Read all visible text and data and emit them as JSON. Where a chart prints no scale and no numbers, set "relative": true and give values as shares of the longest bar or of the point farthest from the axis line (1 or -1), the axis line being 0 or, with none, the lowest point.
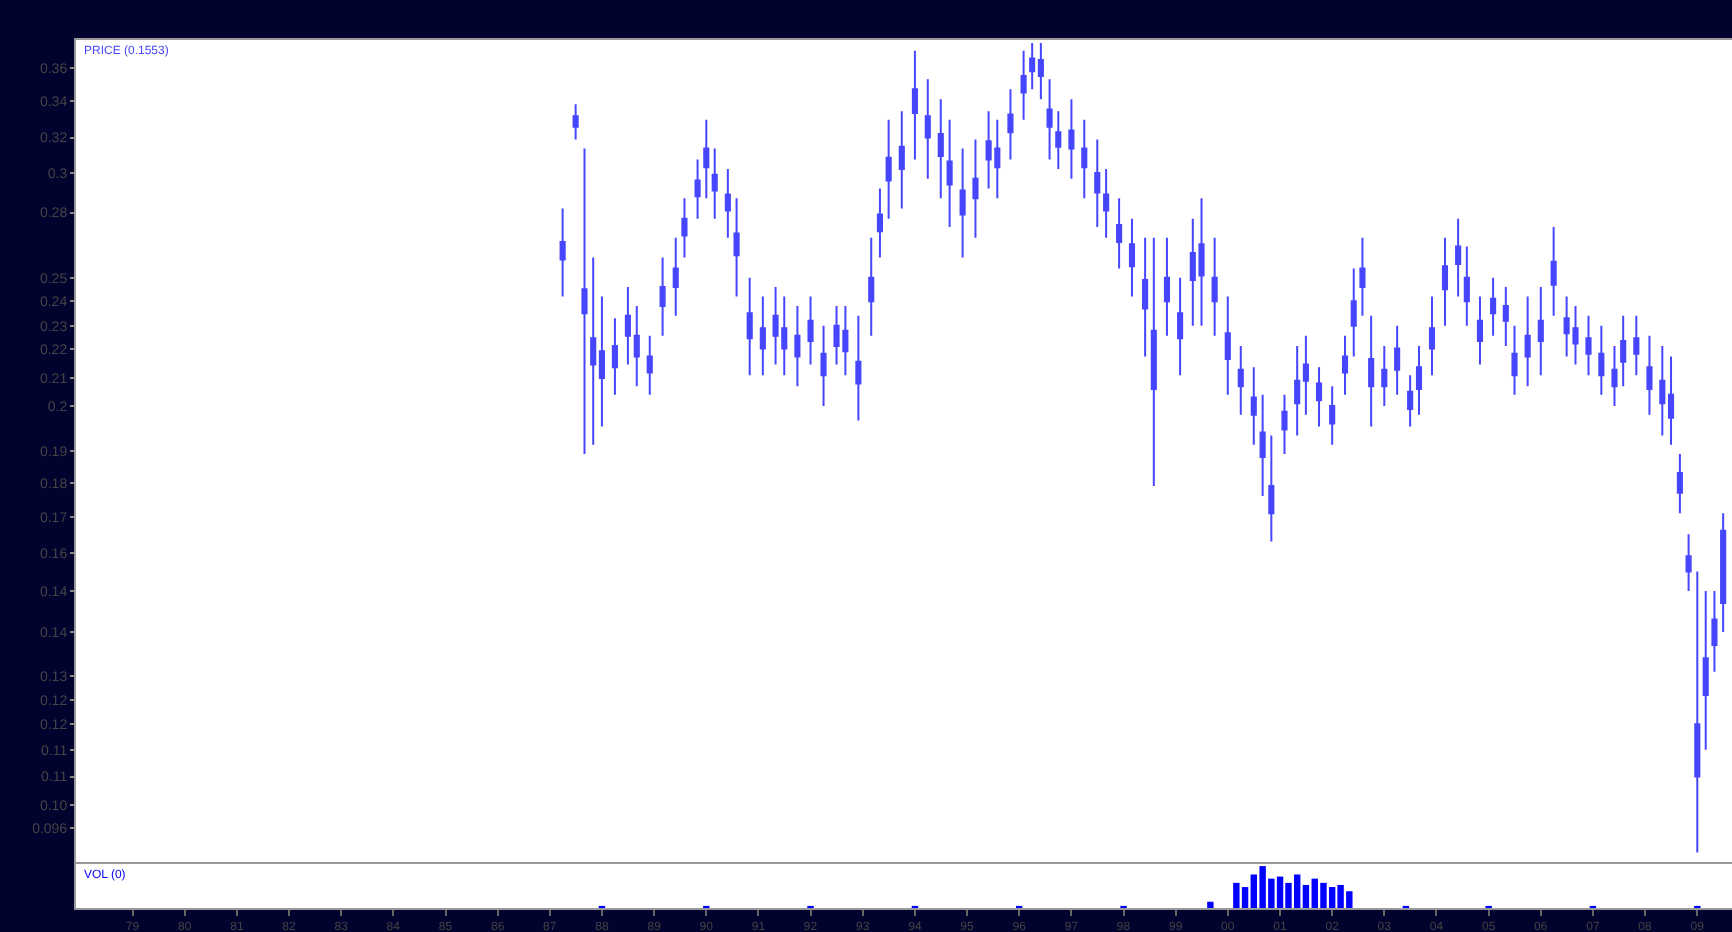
{
  "chart_data": [
    {
      "type": "candlestick",
      "log": true,
      "tick_labels": "y",
      "grid": false,
      "x": [
        "1987-04",
        "1987-07",
        "1987-09",
        "1987-11",
        "1988-01",
        "1988-04",
        "1988-07",
        "1988-09",
        "1988-12",
        "1989-03",
        "1989-06",
        "1989-08",
        "1989-11",
        "1990-01",
        "1990-03",
        "1990-06",
        "1990-08",
        "1990-11",
        "1991-02",
        "1991-05",
        "1991-07",
        "1991-10",
        "1992-01",
        "1992-04",
        "1992-07",
        "1992-09",
        "1992-12",
        "1993-03",
        "1993-05",
        "1993-07",
        "1993-10",
        "1994-01",
        "1994-04",
        "1994-07",
        "1994-09",
        "1994-12",
        "1995-03",
        "1995-06",
        "1995-08",
        "1995-11",
        "1996-02",
        "1996-04",
        "1996-06",
        "1996-08",
        "1996-10",
        "1997-01",
        "1997-04",
        "1997-07",
        "1997-09",
        "1997-12",
        "1998-03",
        "1998-06",
        "1998-08",
        "1998-11",
        "1999-02",
        "1999-05",
        "1999-07",
        "1999-10",
        "2000-01",
        "2000-04",
        "2000-07",
        "2000-09",
        "2000-11",
        "2001-02",
        "2001-05",
        "2001-07",
        "2001-10",
        "2002-01",
        "2002-04",
        "2002-06",
        "2002-08",
        "2002-10",
        "2003-01",
        "2003-04",
        "2003-07",
        "2003-09",
        "2003-12",
        "2004-03",
        "2004-06",
        "2004-08",
        "2004-11",
        "2005-02",
        "2005-05",
        "2005-07",
        "2005-10",
        "2006-01",
        "2006-04",
        "2006-07",
        "2006-09",
        "2006-12",
        "2007-03",
        "2007-06",
        "2007-08",
        "2007-11",
        "2008-02",
        "2008-05",
        "2008-07",
        "2008-09",
        "2008-11",
        "2009-01",
        "2009-03",
        "2009-05",
        "2009-07"
      ],
      "series": [
        {
          "name": "PRICE (0.1553)",
          "color": "#4646ff",
          "ohlc": [
            [
              0.258,
              0.282,
              0.242,
              0.266
            ],
            [
              0.325,
              0.338,
              0.318,
              0.331
            ],
            [
              0.235,
              0.313,
              0.184,
              0.245
            ],
            [
              0.215,
              0.259,
              0.187,
              0.225
            ],
            [
              0.21,
              0.242,
              0.193,
              0.22
            ],
            [
              0.214,
              0.233,
              0.204,
              0.222
            ],
            [
              0.226,
              0.246,
              0.215,
              0.234
            ],
            [
              0.218,
              0.238,
              0.207,
              0.226
            ],
            [
              0.212,
              0.226,
              0.204,
              0.218
            ],
            [
              0.238,
              0.259,
              0.226,
              0.246
            ],
            [
              0.246,
              0.268,
              0.234,
              0.254
            ],
            [
              0.269,
              0.287,
              0.259,
              0.277
            ],
            [
              0.288,
              0.307,
              0.277,
              0.296
            ],
            [
              0.303,
              0.329,
              0.287,
              0.313
            ],
            [
              0.291,
              0.313,
              0.277,
              0.299
            ],
            [
              0.281,
              0.302,
              0.268,
              0.289
            ],
            [
              0.26,
              0.287,
              0.242,
              0.27
            ],
            [
              0.225,
              0.25,
              0.211,
              0.235
            ],
            [
              0.221,
              0.242,
              0.211,
              0.229
            ],
            [
              0.226,
              0.246,
              0.215,
              0.234
            ],
            [
              0.221,
              0.242,
              0.211,
              0.229
            ],
            [
              0.218,
              0.238,
              0.207,
              0.226
            ],
            [
              0.224,
              0.242,
              0.215,
              0.232
            ],
            [
              0.211,
              0.23,
              0.2,
              0.219
            ],
            [
              0.222,
              0.238,
              0.215,
              0.23
            ],
            [
              0.22,
              0.238,
              0.211,
              0.228
            ],
            [
              0.208,
              0.234,
              0.195,
              0.216
            ],
            [
              0.24,
              0.268,
              0.226,
              0.25
            ],
            [
              0.271,
              0.292,
              0.259,
              0.279
            ],
            [
              0.296,
              0.329,
              0.277,
              0.308
            ],
            [
              0.302,
              0.334,
              0.282,
              0.314
            ],
            [
              0.333,
              0.371,
              0.307,
              0.347
            ],
            [
              0.319,
              0.353,
              0.297,
              0.331
            ],
            [
              0.309,
              0.341,
              0.287,
              0.321
            ],
            [
              0.294,
              0.329,
              0.273,
              0.306
            ],
            [
              0.279,
              0.313,
              0.259,
              0.291
            ],
            [
              0.287,
              0.318,
              0.268,
              0.297
            ],
            [
              0.307,
              0.334,
              0.292,
              0.317
            ],
            [
              0.303,
              0.329,
              0.287,
              0.313
            ],
            [
              0.322,
              0.347,
              0.307,
              0.332
            ],
            [
              0.345,
              0.371,
              0.329,
              0.355
            ],
            [
              0.358,
              0.376,
              0.347,
              0.366
            ],
            [
              0.355,
              0.376,
              0.341,
              0.365
            ],
            [
              0.325,
              0.353,
              0.307,
              0.335
            ],
            [
              0.314,
              0.334,
              0.302,
              0.322
            ],
            [
              0.313,
              0.341,
              0.297,
              0.323
            ],
            [
              0.303,
              0.329,
              0.287,
              0.313
            ],
            [
              0.29,
              0.318,
              0.273,
              0.3
            ],
            [
              0.281,
              0.302,
              0.268,
              0.289
            ],
            [
              0.266,
              0.287,
              0.254,
              0.274
            ],
            [
              0.255,
              0.277,
              0.242,
              0.265
            ],
            [
              0.237,
              0.268,
              0.218,
              0.249
            ],
            [
              0.206,
              0.268,
              0.174,
              0.228
            ],
            [
              0.24,
              0.268,
              0.226,
              0.25
            ],
            [
              0.225,
              0.25,
              0.211,
              0.235
            ],
            [
              0.249,
              0.277,
              0.23,
              0.261
            ],
            [
              0.251,
              0.287,
              0.23,
              0.265
            ],
            [
              0.24,
              0.268,
              0.226,
              0.25
            ],
            [
              0.217,
              0.242,
              0.204,
              0.227
            ],
            [
              0.207,
              0.222,
              0.197,
              0.213
            ],
            [
              0.197,
              0.214,
              0.187,
              0.203
            ],
            [
              0.183,
              0.204,
              0.171,
              0.191
            ],
            [
              0.166,
              0.19,
              0.158,
              0.174
            ],
            [
              0.192,
              0.204,
              0.184,
              0.198
            ],
            [
              0.201,
              0.222,
              0.19,
              0.209
            ],
            [
              0.209,
              0.226,
              0.197,
              0.215
            ],
            [
              0.202,
              0.214,
              0.193,
              0.208
            ],
            [
              0.194,
              0.207,
              0.187,
              0.2
            ],
            [
              0.212,
              0.226,
              0.204,
              0.218
            ],
            [
              0.23,
              0.254,
              0.218,
              0.24
            ],
            [
              0.246,
              0.268,
              0.234,
              0.254
            ],
            [
              0.207,
              0.234,
              0.193,
              0.217
            ],
            [
              0.207,
              0.222,
              0.2,
              0.213
            ],
            [
              0.213,
              0.23,
              0.204,
              0.221
            ],
            [
              0.199,
              0.211,
              0.193,
              0.205
            ],
            [
              0.206,
              0.222,
              0.197,
              0.214
            ],
            [
              0.221,
              0.242,
              0.211,
              0.229
            ],
            [
              0.245,
              0.268,
              0.23,
              0.255
            ],
            [
              0.256,
              0.277,
              0.242,
              0.264
            ],
            [
              0.24,
              0.264,
              0.23,
              0.25
            ],
            [
              0.224,
              0.242,
              0.215,
              0.232
            ],
            [
              0.235,
              0.25,
              0.226,
              0.241
            ],
            [
              0.232,
              0.246,
              0.222,
              0.238
            ],
            [
              0.211,
              0.23,
              0.204,
              0.219
            ],
            [
              0.218,
              0.242,
              0.207,
              0.226
            ],
            [
              0.224,
              0.246,
              0.211,
              0.232
            ],
            [
              0.247,
              0.273,
              0.234,
              0.257
            ],
            [
              0.227,
              0.242,
              0.218,
              0.233
            ],
            [
              0.223,
              0.238,
              0.215,
              0.229
            ],
            [
              0.219,
              0.234,
              0.211,
              0.225
            ],
            [
              0.211,
              0.23,
              0.204,
              0.219
            ],
            [
              0.207,
              0.222,
              0.2,
              0.213
            ],
            [
              0.216,
              0.234,
              0.207,
              0.224
            ],
            [
              0.219,
              0.234,
              0.211,
              0.225
            ],
            [
              0.206,
              0.226,
              0.197,
              0.214
            ],
            [
              0.201,
              0.222,
              0.19,
              0.209
            ],
            [
              0.196,
              0.218,
              0.187,
              0.204
            ],
            [
              0.172,
              0.184,
              0.166,
              0.178
            ],
            [
              0.15,
              0.16,
              0.145,
              0.154
            ],
            [
              0.105,
              0.15,
              0.092,
              0.115
            ],
            [
              0.121,
              0.145,
              0.11,
              0.129
            ],
            [
              0.132,
              0.145,
              0.126,
              0.138
            ],
            [
              0.142,
              0.166,
              0.135,
              0.161
            ]
          ]
        }
      ],
      "xlim": [
        "1977-12",
        "2009-09"
      ],
      "ylim": [
        0.0905,
        0.378
      ],
      "yticks": [
        0.36,
        0.34,
        {
          "value": 0.319,
          "label": "0.32"
        },
        0.3,
        0.28,
        0.25,
        0.24,
        0.23,
        {
          "value": 0.221,
          "label": "0.22"
        },
        0.21,
        0.2,
        {
          "value": 0.185,
          "label": "0.19"
        },
        {
          "value": 0.175,
          "label": "0.18"
        },
        {
          "value": 0.165,
          "label": "0.17"
        },
        {
          "value": 0.155,
          "label": "0.16"
        },
        {
          "value": 0.145,
          "label": "0.14"
        },
        {
          "value": 0.135,
          "label": "0.14"
        },
        {
          "value": 0.125,
          "label": "0.13"
        },
        {
          "value": 0.12,
          "label": "0.12"
        },
        {
          "value": 0.115,
          "label": "0.12"
        },
        {
          "value": 0.11,
          "label": "0.11"
        },
        {
          "value": 0.105,
          "label": "0.11"
        },
        {
          "value": 0.1,
          "label": "0.10"
        },
        0.096
      ]
    },
    {
      "type": "bar",
      "relative": true,
      "tick_labels": "x",
      "grid": false,
      "x": [
        "1988-01",
        "1990-01",
        "1992-01",
        "1994-01",
        "1996-01",
        "1998-01",
        "1999-09",
        "2000-03",
        "2000-05",
        "2000-07",
        "2000-09",
        "2000-11",
        "2001-01",
        "2001-03",
        "2001-05",
        "2001-07",
        "2001-09",
        "2001-11",
        "2002-01",
        "2002-03",
        "2002-05",
        "2003-06",
        "2005-01",
        "2007-01",
        "2009-01"
      ],
      "series": [
        {
          "name": "VOL (0)",
          "color": "#0000ff",
          "values": [
            0.05,
            0.05,
            0.05,
            0.05,
            0.05,
            0.05,
            0.15,
            0.6,
            0.5,
            0.8,
            1,
            0.7,
            0.75,
            0.6,
            0.8,
            0.55,
            0.7,
            0.6,
            0.5,
            0.55,
            0.4,
            0.05,
            0.05,
            0.05,
            0.05
          ]
        }
      ],
      "xlim": [
        "1977-12",
        "2009-09"
      ],
      "xticks": [
        {
          "value": "1979",
          "label": "79"
        },
        {
          "value": "1980",
          "label": "80"
        },
        {
          "value": "1981",
          "label": "81"
        },
        {
          "value": "1982",
          "label": "82"
        },
        {
          "value": "1983",
          "label": "83"
        },
        {
          "value": "1984",
          "label": "84"
        },
        {
          "value": "1985",
          "label": "85"
        },
        {
          "value": "1986",
          "label": "86"
        },
        {
          "value": "1987",
          "label": "87"
        },
        {
          "value": "1988",
          "label": "88"
        },
        {
          "value": "1989",
          "label": "89"
        },
        {
          "value": "1990",
          "label": "90"
        },
        {
          "value": "1991",
          "label": "91"
        },
        {
          "value": "1992",
          "label": "92"
        },
        {
          "value": "1993",
          "label": "93"
        },
        {
          "value": "1994",
          "label": "94"
        },
        {
          "value": "1995",
          "label": "95"
        },
        {
          "value": "1996",
          "label": "96"
        },
        {
          "value": "1997",
          "label": "97"
        },
        {
          "value": "1998",
          "label": "98"
        },
        {
          "value": "1999",
          "label": "99"
        },
        {
          "value": "2000",
          "label": "00"
        },
        {
          "value": "2001",
          "label": "01"
        },
        {
          "value": "2002",
          "label": "02"
        },
        {
          "value": "2003",
          "label": "03"
        },
        {
          "value": "2004",
          "label": "04"
        },
        {
          "value": "2005",
          "label": "05"
        },
        {
          "value": "2006",
          "label": "06"
        },
        {
          "value": "2007",
          "label": "07"
        },
        {
          "value": "2008",
          "label": "08"
        },
        {
          "value": "2009",
          "label": "09"
        }
      ]
    }
  ]
}
